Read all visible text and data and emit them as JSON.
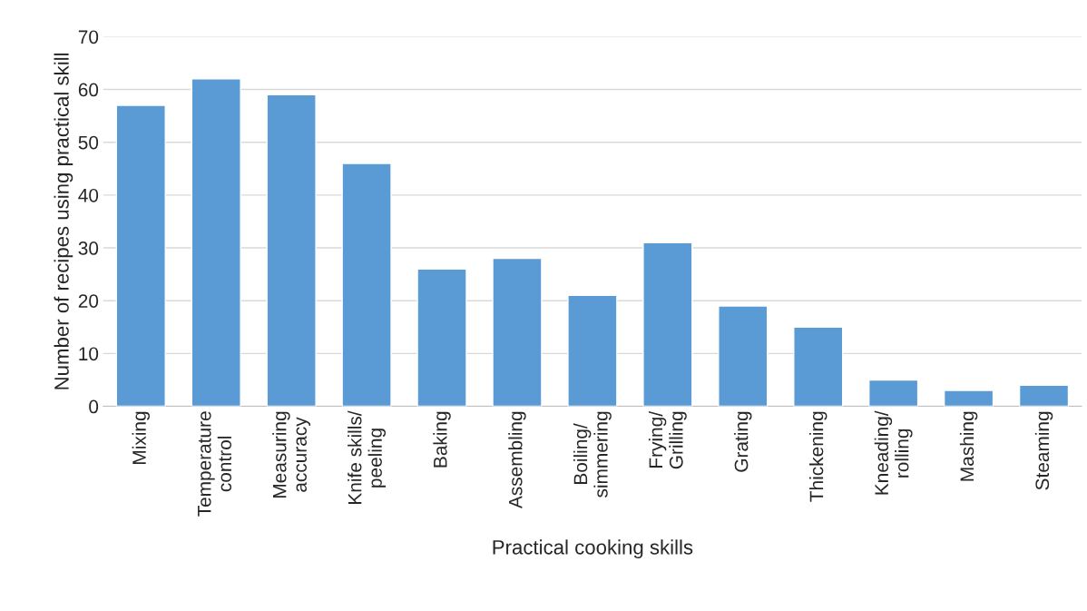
{
  "chart_data": {
    "type": "bar",
    "xlabel": "Practical cooking skills",
    "ylabel": "Number of recipes using practical skill",
    "categories": [
      "Mixing",
      "Temperature\ncontrol",
      "Measuring\naccuracy",
      "Knife skills/\npeeling",
      "Baking",
      "Assembling",
      "Boiling/\nsimmering",
      "Frying/\nGrilling",
      "Grating",
      "Thickening",
      "Kneading/\nrolling",
      "Mashing",
      "Steaming"
    ],
    "values": [
      57,
      62,
      59,
      46,
      26,
      28,
      21,
      31,
      19,
      15,
      5,
      3,
      4
    ],
    "color": "#5b9bd5",
    "ylim": [
      0,
      70
    ],
    "yticks": [
      0,
      10,
      20,
      30,
      40,
      50,
      60,
      70
    ],
    "grid": "y",
    "legend": false
  }
}
